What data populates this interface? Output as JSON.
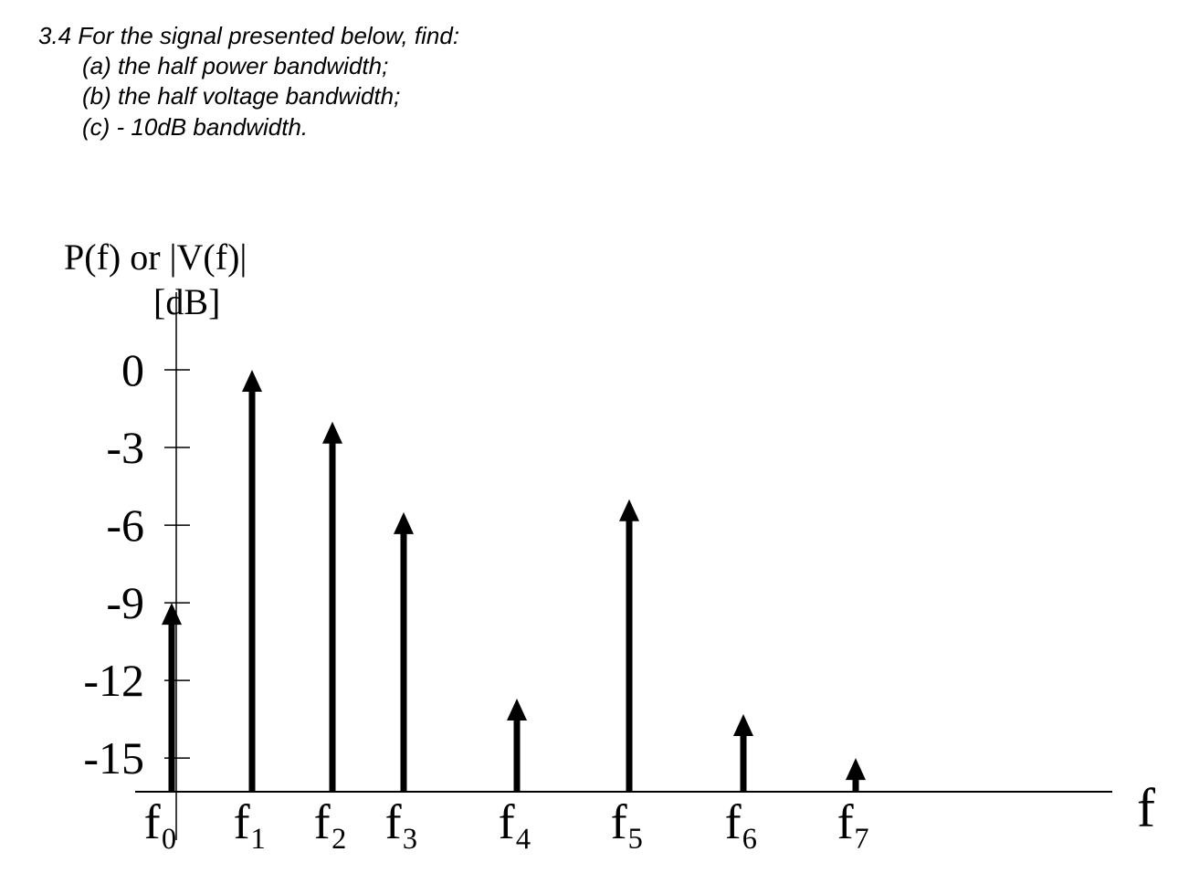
{
  "problem": {
    "title": "3.4 For the signal presented below, find:",
    "items": [
      "(a)  the half power bandwidth;",
      "(b)  the half voltage bandwidth;",
      "(c)  - 10dB bandwidth."
    ]
  },
  "chart_data": {
    "type": "stem",
    "y_label": "P(f) or |V(f)|",
    "y_unit": "[dB]",
    "x_label": "f",
    "categories": [
      "f₀",
      "f₁",
      "f₂",
      "f₃",
      "f₄",
      "f₅",
      "f₆",
      "f₇"
    ],
    "values": [
      -9,
      0,
      -2,
      -5.5,
      -12.7,
      -5,
      -13.3,
      -15
    ],
    "color": "#000000",
    "ylim": [
      -16.3,
      3
    ],
    "yticks": [
      0,
      -3,
      -6,
      -9,
      -12,
      -15
    ]
  }
}
